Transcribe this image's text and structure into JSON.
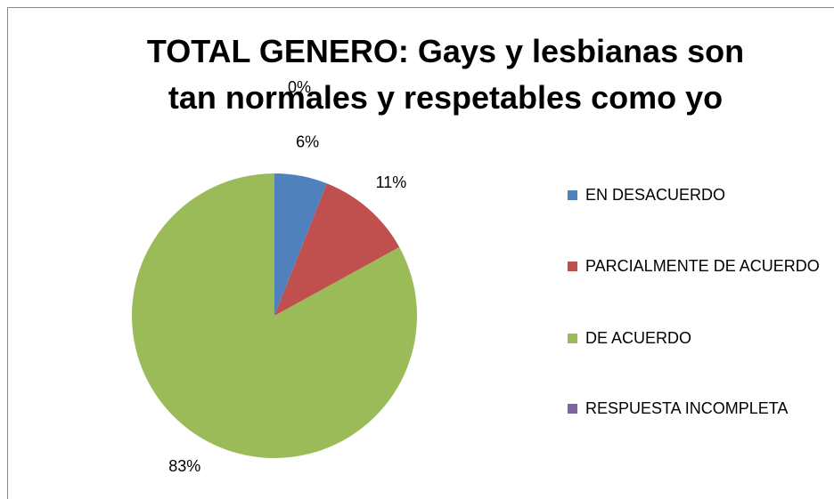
{
  "chart_data": {
    "type": "pie",
    "title": "TOTAL GENERO: Gays y lesbianas son tan normales y respetables como yo",
    "categories": [
      "EN DESACUERDO",
      "PARCIALMENTE DE ACUERDO",
      "DE ACUERDO",
      "RESPUESTA INCOMPLETA"
    ],
    "values": [
      6,
      11,
      83,
      0
    ],
    "value_labels": [
      "6%",
      "11%",
      "83%",
      "0%"
    ],
    "colors": [
      "#4f81bd",
      "#c0504d",
      "#9bbb59",
      "#8064a2"
    ],
    "legend": "right"
  }
}
